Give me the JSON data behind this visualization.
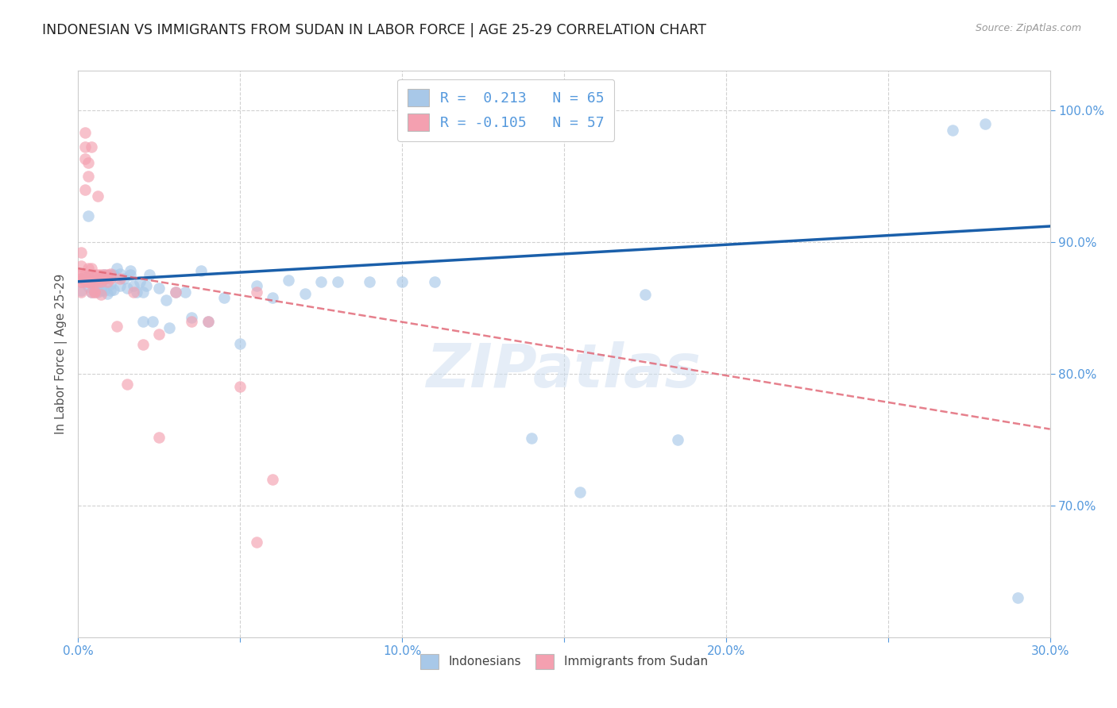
{
  "title": "INDONESIAN VS IMMIGRANTS FROM SUDAN IN LABOR FORCE | AGE 25-29 CORRELATION CHART",
  "source": "Source: ZipAtlas.com",
  "ylabel": "In Labor Force | Age 25-29",
  "xlim": [
    0.0,
    0.3
  ],
  "ylim": [
    0.6,
    1.03
  ],
  "yticks": [
    0.7,
    0.8,
    0.9,
    1.0
  ],
  "ytick_labels": [
    "70.0%",
    "80.0%",
    "90.0%",
    "100.0%"
  ],
  "xticks": [
    0.0,
    0.05,
    0.1,
    0.15,
    0.2,
    0.25,
    0.3
  ],
  "xtick_labels": [
    "0.0%",
    "",
    "10.0%",
    "",
    "20.0%",
    "",
    "30.0%"
  ],
  "blue_color": "#a8c8e8",
  "pink_color": "#f4a0b0",
  "line_blue": "#1a5faa",
  "line_pink": "#e06070",
  "watermark": "ZIPatlas",
  "indonesians_x": [
    0.001,
    0.001,
    0.002,
    0.003,
    0.003,
    0.004,
    0.004,
    0.005,
    0.005,
    0.006,
    0.006,
    0.007,
    0.007,
    0.008,
    0.008,
    0.009,
    0.009,
    0.01,
    0.01,
    0.011,
    0.011,
    0.012,
    0.013,
    0.013,
    0.014,
    0.015,
    0.016,
    0.016,
    0.017,
    0.018,
    0.019,
    0.02,
    0.021,
    0.022,
    0.023,
    0.025,
    0.027,
    0.028,
    0.03,
    0.033,
    0.035,
    0.038,
    0.04,
    0.045,
    0.05,
    0.055,
    0.06,
    0.065,
    0.07,
    0.075,
    0.08,
    0.09,
    0.1,
    0.11,
    0.14,
    0.155,
    0.175,
    0.185,
    0.27,
    0.28,
    0.29,
    0.003,
    0.01,
    0.02
  ],
  "indonesians_y": [
    0.863,
    0.872,
    0.871,
    0.866,
    0.874,
    0.862,
    0.871,
    0.863,
    0.87,
    0.862,
    0.871,
    0.868,
    0.863,
    0.875,
    0.863,
    0.873,
    0.861,
    0.875,
    0.868,
    0.864,
    0.875,
    0.88,
    0.867,
    0.876,
    0.872,
    0.865,
    0.878,
    0.875,
    0.867,
    0.862,
    0.87,
    0.862,
    0.867,
    0.875,
    0.84,
    0.865,
    0.856,
    0.835,
    0.862,
    0.862,
    0.843,
    0.878,
    0.84,
    0.858,
    0.823,
    0.867,
    0.858,
    0.871,
    0.861,
    0.87,
    0.87,
    0.87,
    0.87,
    0.87,
    0.751,
    0.71,
    0.86,
    0.75,
    0.985,
    0.99,
    0.63,
    0.92,
    0.863,
    0.84
  ],
  "sudan_x": [
    0.001,
    0.001,
    0.001,
    0.001,
    0.001,
    0.002,
    0.002,
    0.002,
    0.002,
    0.003,
    0.003,
    0.003,
    0.003,
    0.003,
    0.004,
    0.004,
    0.004,
    0.004,
    0.005,
    0.005,
    0.005,
    0.006,
    0.006,
    0.006,
    0.007,
    0.007,
    0.007,
    0.008,
    0.008,
    0.009,
    0.009,
    0.01,
    0.01,
    0.012,
    0.013,
    0.015,
    0.017,
    0.02,
    0.025,
    0.03,
    0.035,
    0.04,
    0.05,
    0.055,
    0.003,
    0.004,
    0.002,
    0.002,
    0.001,
    0.001,
    0.001,
    0.006,
    0.003,
    0.055,
    0.005,
    0.025,
    0.06
  ],
  "sudan_y": [
    0.872,
    0.882,
    0.892,
    0.862,
    0.876,
    0.963,
    0.972,
    0.983,
    0.875,
    0.872,
    0.87,
    0.87,
    0.96,
    0.95,
    0.972,
    0.862,
    0.875,
    0.88,
    0.875,
    0.87,
    0.862,
    0.935,
    0.872,
    0.875,
    0.875,
    0.87,
    0.86,
    0.872,
    0.875,
    0.87,
    0.875,
    0.872,
    0.876,
    0.836,
    0.872,
    0.792,
    0.862,
    0.822,
    0.83,
    0.862,
    0.84,
    0.84,
    0.79,
    0.862,
    0.88,
    0.87,
    0.94,
    0.87,
    0.87,
    0.87,
    0.875,
    0.87,
    0.87,
    0.672,
    0.862,
    0.752,
    0.72
  ],
  "blue_line_x0": 0.0,
  "blue_line_x1": 0.3,
  "blue_line_y0": 0.87,
  "blue_line_y1": 0.912,
  "pink_line_x0": 0.0,
  "pink_line_x1": 0.3,
  "pink_line_y0": 0.88,
  "pink_line_y1": 0.758
}
